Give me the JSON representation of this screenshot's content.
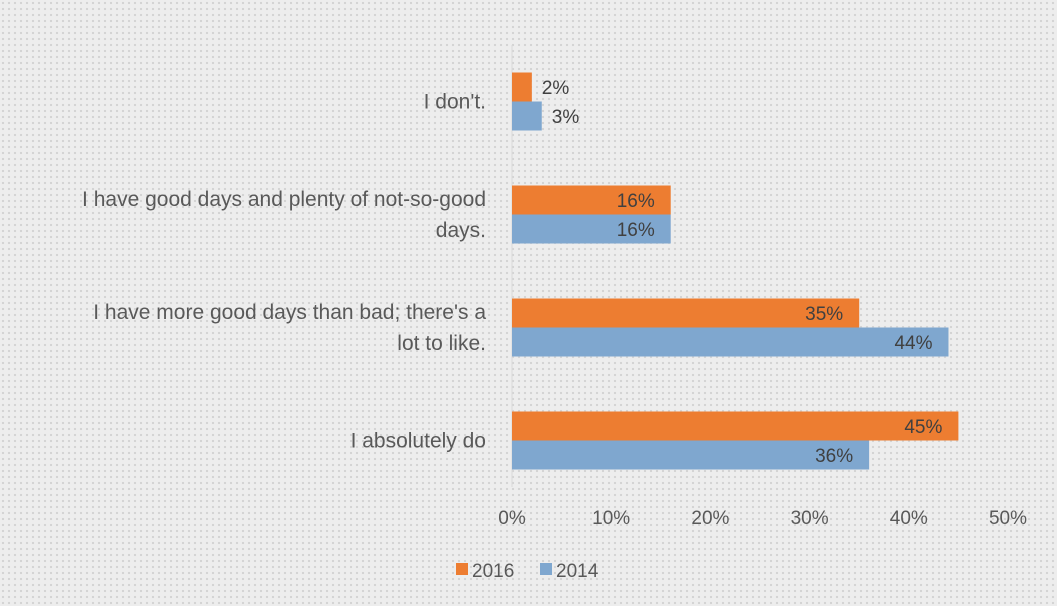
{
  "chart_data": {
    "type": "bar",
    "orientation": "horizontal",
    "categories": [
      [
        "I don't."
      ],
      [
        "I have good days and plenty of not-so-good",
        "days."
      ],
      [
        "I have more good days than bad; there's a",
        "lot to like."
      ],
      [
        "I absolutely do"
      ]
    ],
    "series": [
      {
        "name": "2016",
        "color": "#ed7d31",
        "values": [
          2,
          16,
          35,
          45
        ],
        "labels": [
          "2%",
          "16%",
          "35%",
          "45%"
        ]
      },
      {
        "name": "2014",
        "color": "#7fa7cf",
        "values": [
          3,
          16,
          44,
          36
        ],
        "labels": [
          "3%",
          "16%",
          "44%",
          "36%"
        ]
      }
    ],
    "x_ticks": [
      "0%",
      "10%",
      "20%",
      "30%",
      "40%",
      "50%"
    ],
    "xlim": [
      0,
      50
    ],
    "grid": false,
    "legend_position": "bottom"
  }
}
